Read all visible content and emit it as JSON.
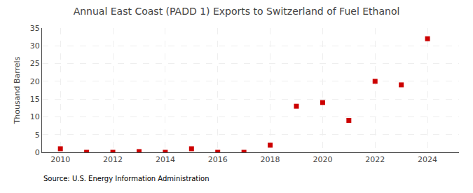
{
  "chart_data": {
    "type": "scatter",
    "title": "Annual East Coast (PADD 1) Exports to Switzerland of Fuel Ethanol",
    "ylabel": "Thousand Barrels",
    "source": "Source: U.S. Energy Information Administration",
    "x": [
      2010,
      2011,
      2012,
      2013,
      2014,
      2015,
      2016,
      2017,
      2018,
      2019,
      2020,
      2021,
      2022,
      2023,
      2024
    ],
    "values": [
      1.0,
      0.0,
      0.0,
      0.2,
      0.0,
      1.0,
      0.0,
      0.0,
      2.0,
      13.0,
      14.0,
      9.0,
      20.0,
      19.0,
      32.0
    ],
    "color": "#cc0000",
    "marker": "square",
    "xlim": [
      2009.3,
      2025.2
    ],
    "ylim": [
      0,
      35
    ],
    "xticks": [
      2010,
      2012,
      2014,
      2016,
      2018,
      2020,
      2022,
      2024
    ],
    "yticks": [
      0,
      5,
      10,
      15,
      20,
      25,
      30,
      35
    ],
    "grid": true
  }
}
